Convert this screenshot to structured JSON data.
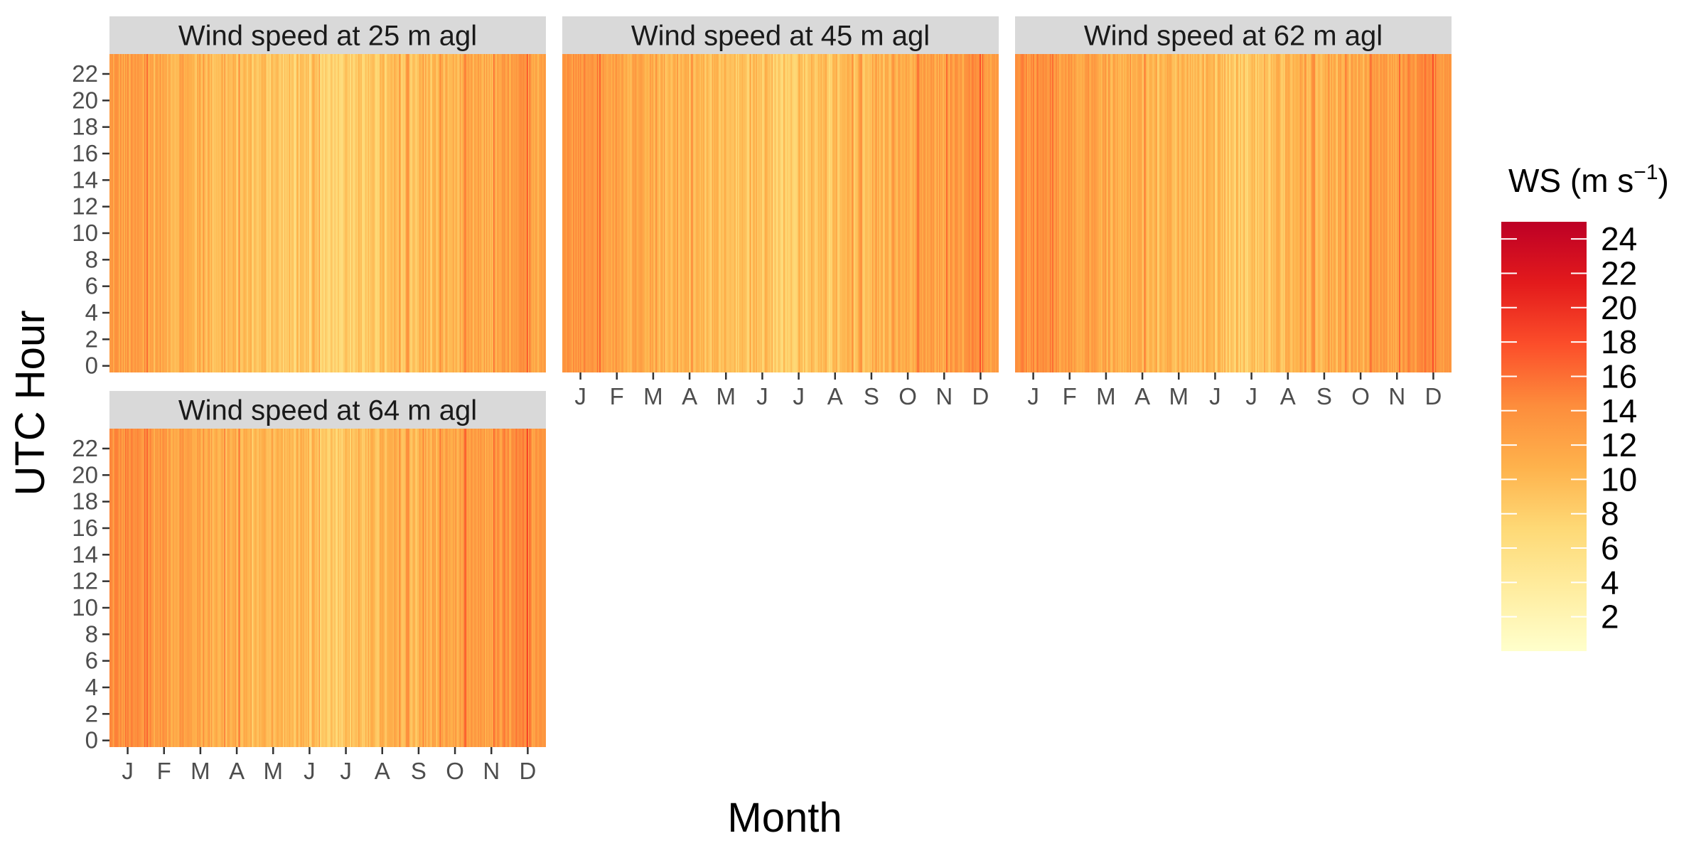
{
  "chart_data": {
    "type": "heatmap",
    "xlabel": "Month",
    "ylabel": "UTC Hour",
    "x_ticks": [
      "J",
      "F",
      "M",
      "A",
      "M",
      "J",
      "J",
      "A",
      "S",
      "O",
      "N",
      "D"
    ],
    "x_range": [
      1,
      365
    ],
    "y_ticks": [
      0,
      2,
      4,
      6,
      8,
      10,
      12,
      14,
      16,
      18,
      20,
      22
    ],
    "y_range": [
      0,
      23
    ],
    "legend": {
      "title": "WS (m s",
      "title_sup": "−1",
      "title_close": ")",
      "ticks": [
        2,
        4,
        6,
        8,
        10,
        12,
        14,
        16,
        18,
        20,
        22,
        24
      ],
      "range": [
        0,
        25
      ],
      "placement": "right"
    },
    "colorscale": [
      "#ffffcc",
      "#ffeda0",
      "#fed976",
      "#feb24c",
      "#fd8d3c",
      "#fc4e2a",
      "#e31a1c",
      "#bd0026"
    ],
    "panels": [
      {
        "title": "Wind speed at 25 m agl",
        "height_m": 25,
        "show_x_axis": false,
        "show_y_axis": true
      },
      {
        "title": "Wind speed at 45 m agl",
        "height_m": 45,
        "show_x_axis": true,
        "show_y_axis": false
      },
      {
        "title": "Wind speed at 62 m agl",
        "height_m": 62,
        "show_x_axis": true,
        "show_y_axis": false
      },
      {
        "title": "Wind speed at 64 m agl",
        "height_m": 64,
        "show_x_axis": true,
        "show_y_axis": true
      }
    ],
    "seasonal_profile": {
      "months": [
        1,
        2,
        3,
        4,
        5,
        6,
        7,
        8,
        9,
        10,
        11,
        12
      ],
      "typical_ws": [
        12.5,
        11.5,
        10.5,
        9.5,
        9.0,
        8.0,
        8.0,
        8.5,
        9.5,
        10.5,
        11.5,
        12.5
      ]
    }
  }
}
